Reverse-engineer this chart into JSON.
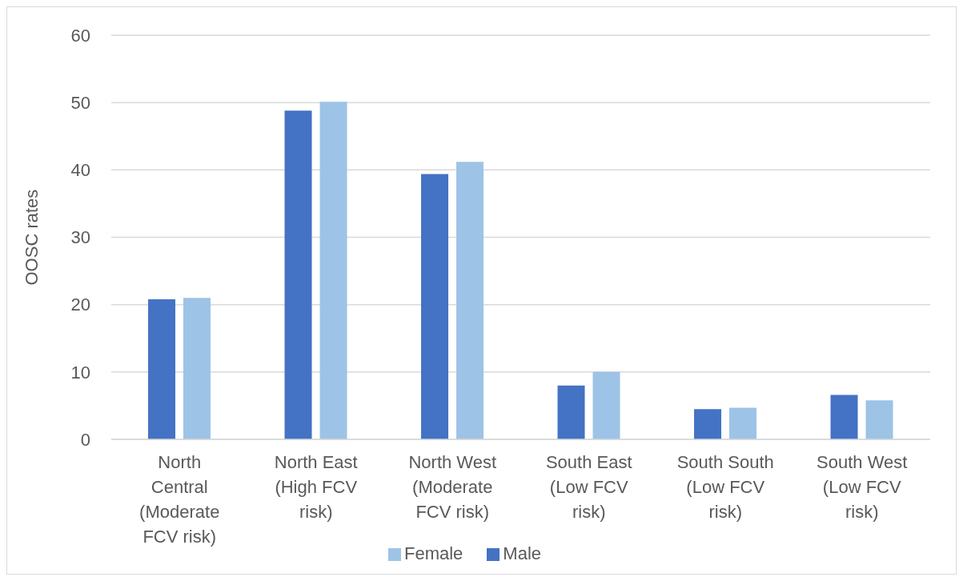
{
  "chart_data": {
    "type": "bar",
    "ylabel": "OOSC rates",
    "categories": [
      "North Central (Moderate FCV risk)",
      "North East (High FCV risk)",
      "North West (Moderate FCV risk)",
      "South East (Low FCV risk)",
      "South South (Low FCV risk)",
      "South West (Low FCV risk)"
    ],
    "series": [
      {
        "name": "Male",
        "color": "#4472c4",
        "values": [
          20.8,
          48.8,
          39.4,
          8.0,
          4.5,
          6.6
        ]
      },
      {
        "name": "Female",
        "color": "#9dc3e6",
        "values": [
          21.0,
          50.1,
          41.2,
          10.0,
          4.7,
          5.8
        ]
      }
    ],
    "ylim": [
      0,
      60
    ],
    "yticks": [
      0,
      10,
      20,
      30,
      40,
      50,
      60
    ],
    "grid": "y",
    "legend": "bottom"
  }
}
